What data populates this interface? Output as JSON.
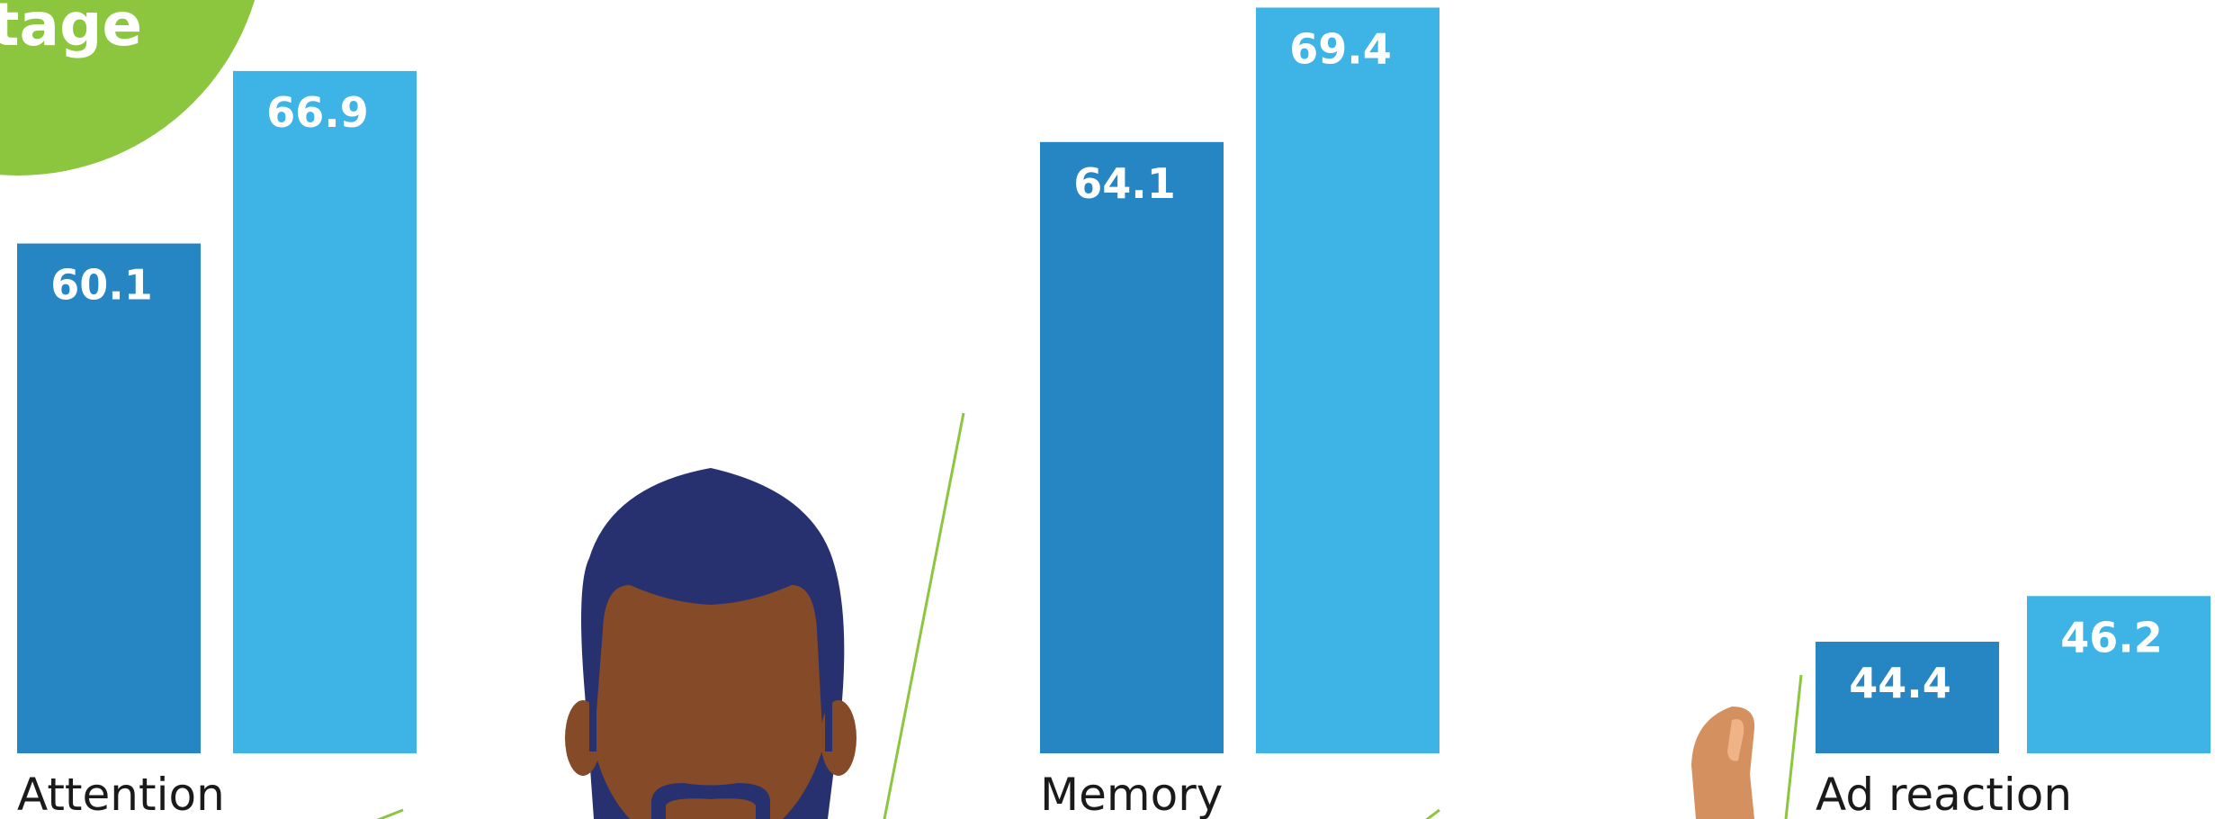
{
  "chart_data": {
    "type": "bar",
    "annotations": [
      "tage"
    ],
    "categories": [
      "Attention",
      "Memory",
      "Ad reaction"
    ],
    "series": [
      {
        "color": "#2586c3",
        "values": [
          60.1,
          64.1,
          44.4
        ]
      },
      {
        "color": "#3db3e6",
        "values": [
          66.9,
          69.4,
          46.2
        ]
      }
    ],
    "ylim": [
      40,
      69.7
    ]
  }
}
